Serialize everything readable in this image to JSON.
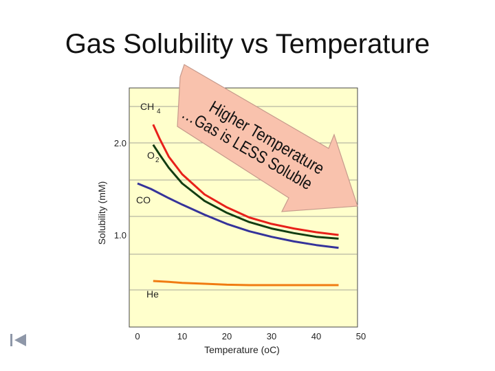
{
  "slide": {
    "title": "Gas Solubility vs Temperature"
  },
  "annotation": {
    "lines": [
      "Higher Temperature",
      "…Gas is LESS Soluble"
    ],
    "arrow_color": "#f9c2ad",
    "arrow_stroke": "#c69a8c"
  },
  "nav": {
    "back_icon": "skip-to-start-icon"
  },
  "chart_data": {
    "type": "line",
    "xlabel": "Temperature (oC)",
    "ylabel": "Solubility (mM)",
    "xlim": [
      0,
      50
    ],
    "ylim": [
      0,
      2.6
    ],
    "x_ticks": [
      "0",
      "10",
      "20",
      "30",
      "40",
      "50"
    ],
    "y_ticks": [
      "1.0",
      "2.0"
    ],
    "y_tick_values": [
      1.0,
      2.0
    ],
    "grid": true,
    "background": "#ffffcc",
    "series": [
      {
        "name": "CH4",
        "color": "#e8201a",
        "x": [
          3.5,
          5,
          7,
          10,
          15,
          20,
          25,
          30,
          35,
          40,
          45
        ],
        "y": [
          2.2,
          2.04,
          1.85,
          1.66,
          1.44,
          1.3,
          1.19,
          1.12,
          1.07,
          1.03,
          1.0
        ]
      },
      {
        "name": "O2",
        "color": "#123d12",
        "x": [
          3.5,
          5,
          7,
          10,
          15,
          20,
          25,
          30,
          35,
          40,
          45
        ],
        "y": [
          1.98,
          1.87,
          1.73,
          1.56,
          1.37,
          1.24,
          1.14,
          1.07,
          1.02,
          0.98,
          0.96
        ]
      },
      {
        "name": "CO",
        "color": "#35339a",
        "x": [
          0,
          3,
          7,
          10,
          15,
          20,
          25,
          30,
          35,
          40,
          45
        ],
        "y": [
          1.56,
          1.5,
          1.4,
          1.33,
          1.22,
          1.12,
          1.04,
          0.98,
          0.93,
          0.89,
          0.86
        ]
      },
      {
        "name": "He",
        "color": "#f07b12",
        "x": [
          3.5,
          7,
          10,
          15,
          20,
          25,
          30,
          35,
          40,
          45
        ],
        "y": [
          0.5,
          0.49,
          0.48,
          0.47,
          0.46,
          0.455,
          0.455,
          0.455,
          0.455,
          0.455
        ]
      }
    ],
    "series_labels": [
      "CH",
      "4",
      "O",
      "2",
      "CO",
      "He"
    ]
  }
}
